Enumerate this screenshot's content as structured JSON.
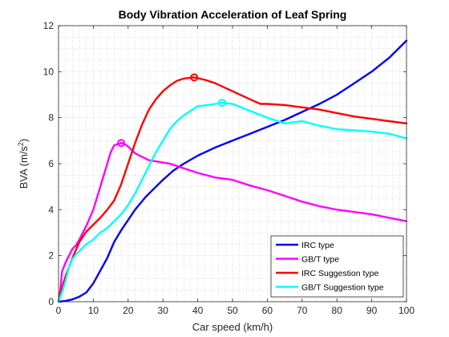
{
  "chart_data": {
    "type": "line",
    "title": "Body Vibration Acceleration of Leaf Spring",
    "xlabel": "Car speed (km/h)",
    "ylabel_main": "BVA (m/s",
    "ylabel_sup": "2",
    "ylabel_end": ")",
    "xlim": [
      0,
      100
    ],
    "ylim": [
      0,
      12
    ],
    "xticks": [
      0,
      10,
      20,
      30,
      40,
      50,
      60,
      70,
      80,
      90,
      100
    ],
    "yticks": [
      0,
      2,
      4,
      6,
      8,
      10,
      12
    ],
    "grid": "minor dotted",
    "legend_position": "bottom-right",
    "series": [
      {
        "name": "IRC type",
        "color": "#0000FF",
        "x": [
          0,
          2,
          4,
          6,
          8,
          10,
          12,
          14,
          16,
          18,
          20,
          22,
          25,
          28,
          30,
          33,
          36,
          40,
          45,
          50,
          55,
          60,
          65,
          70,
          75,
          80,
          85,
          90,
          95,
          100
        ],
        "y": [
          0,
          0.03,
          0.1,
          0.22,
          0.4,
          0.8,
          1.35,
          1.9,
          2.6,
          3.1,
          3.55,
          4.0,
          4.55,
          5.0,
          5.3,
          5.7,
          6.0,
          6.35,
          6.7,
          7.0,
          7.3,
          7.6,
          7.9,
          8.25,
          8.6,
          9.0,
          9.5,
          10.0,
          10.6,
          11.35
        ]
      },
      {
        "name": "GB/T type",
        "color": "#FF00FF",
        "x": [
          0,
          0.5,
          1,
          2,
          3,
          4,
          5,
          6,
          8,
          10,
          12,
          14,
          15,
          16,
          17,
          18,
          19,
          20,
          21,
          22,
          24,
          26,
          28,
          30,
          32,
          35,
          40,
          45,
          50,
          55,
          60,
          65,
          70,
          75,
          80,
          85,
          90,
          95,
          100
        ],
        "y": [
          0,
          0.5,
          1.3,
          1.7,
          2.0,
          2.3,
          2.45,
          2.7,
          3.3,
          4.0,
          5.0,
          6.0,
          6.5,
          6.8,
          6.85,
          6.9,
          6.85,
          6.75,
          6.6,
          6.45,
          6.3,
          6.15,
          6.1,
          6.05,
          6.0,
          5.85,
          5.6,
          5.4,
          5.3,
          5.05,
          4.85,
          4.6,
          4.35,
          4.15,
          4.0,
          3.9,
          3.8,
          3.65,
          3.5
        ]
      },
      {
        "name": "IRC Suggestion type",
        "color": "#FF0000",
        "x": [
          0,
          1,
          2,
          3,
          4,
          5,
          6,
          8,
          10,
          12,
          14,
          16,
          18,
          20,
          22,
          24,
          26,
          28,
          30,
          32,
          34,
          36,
          38,
          39,
          40,
          42,
          45,
          50,
          55,
          58,
          60,
          65,
          70,
          75,
          80,
          85,
          90,
          95,
          100
        ],
        "y": [
          0,
          0.6,
          1.1,
          1.5,
          1.9,
          2.25,
          2.6,
          3.05,
          3.35,
          3.65,
          4.0,
          4.4,
          5.1,
          6.0,
          6.9,
          7.7,
          8.35,
          8.8,
          9.15,
          9.4,
          9.6,
          9.7,
          9.74,
          9.75,
          9.72,
          9.65,
          9.5,
          9.15,
          8.8,
          8.6,
          8.6,
          8.55,
          8.45,
          8.35,
          8.2,
          8.05,
          7.95,
          7.85,
          7.75
        ]
      },
      {
        "name": "GB/T Suggestion type",
        "color": "#00FFFF",
        "x": [
          0,
          1,
          2,
          3,
          4,
          5,
          6,
          8,
          10,
          12,
          14,
          16,
          18,
          20,
          22,
          24,
          26,
          28,
          30,
          32,
          34,
          36,
          38,
          40,
          43,
          45,
          47,
          50,
          55,
          60,
          65,
          70,
          75,
          80,
          85,
          90,
          95,
          100
        ],
        "y": [
          0,
          0.4,
          0.9,
          1.5,
          1.85,
          2.05,
          2.2,
          2.5,
          2.7,
          3.0,
          3.2,
          3.5,
          3.8,
          4.2,
          4.7,
          5.3,
          5.9,
          6.5,
          7.0,
          7.5,
          7.85,
          8.1,
          8.3,
          8.5,
          8.55,
          8.6,
          8.65,
          8.6,
          8.3,
          8.0,
          7.75,
          7.85,
          7.65,
          7.5,
          7.45,
          7.4,
          7.3,
          7.1
        ]
      }
    ],
    "markers": [
      {
        "series": "GB/T type",
        "x": 18,
        "y": 6.9,
        "color": "#FF00FF"
      },
      {
        "series": "IRC Suggestion type",
        "x": 39,
        "y": 9.75,
        "color": "#FF0000"
      },
      {
        "series": "GB/T Suggestion type",
        "x": 47,
        "y": 8.65,
        "color": "#00FFFF"
      }
    ]
  }
}
